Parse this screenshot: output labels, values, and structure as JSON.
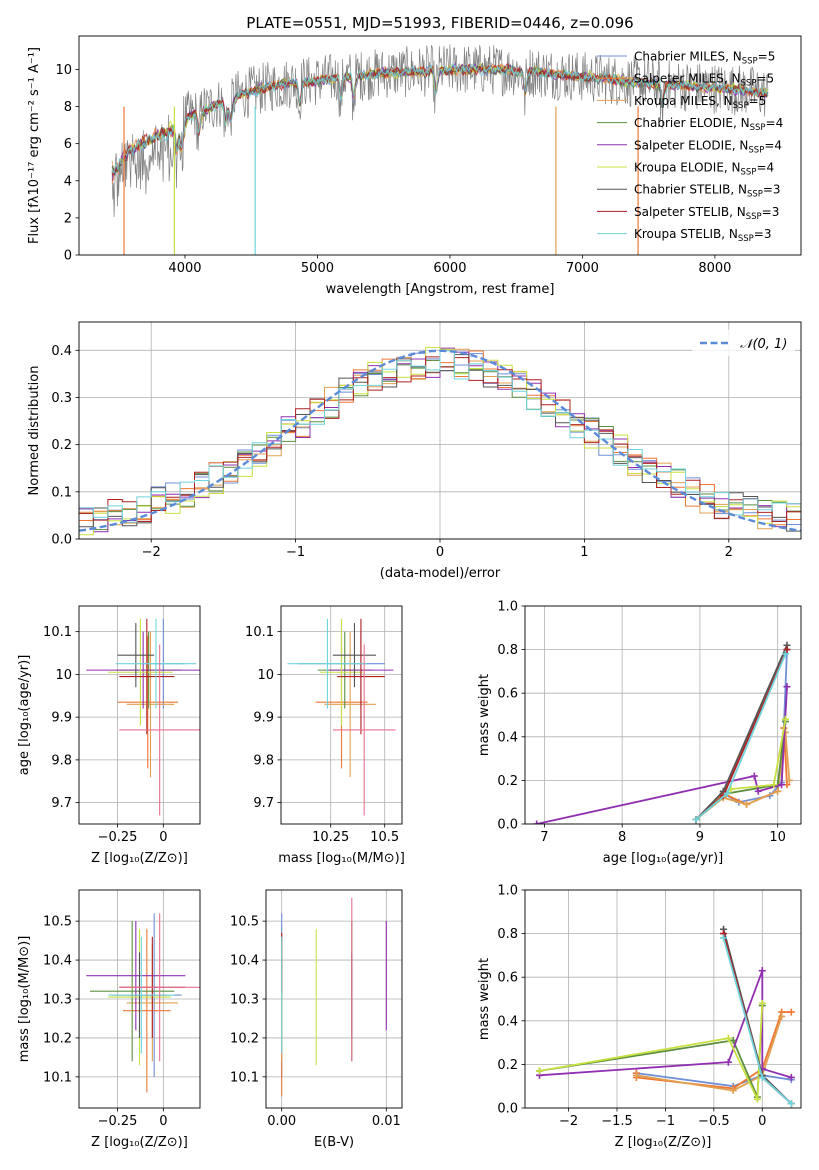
{
  "figure": {
    "title": "PLATE=0551, MJD=51993, FIBERID=0446, z=0.096"
  },
  "colors": {
    "Chabrier MILES": "#6f8fd6",
    "Salpeter MILES": "#ee7733",
    "Kroupa MILES": "#e0a050",
    "Chabrier ELODIE": "#5a8f40",
    "Salpeter ELODIE": "#9030b0",
    "Kroupa ELODIE": "#c8e040",
    "Chabrier STELIB": "#555555",
    "Salpeter STELIB": "#b02020",
    "Kroupa STELIB": "#70d4dc",
    "data": "#808080",
    "extra": "#e87090",
    "gaussian": "#5b8bd8"
  },
  "chart_data": [
    {
      "id": "spectrum",
      "type": "line",
      "title": "PLATE=0551, MJD=51993, FIBERID=0446, z=0.096",
      "xlabel": "wavelength [Angstrom, rest frame]",
      "ylabel": "Flux [fλ10⁻¹⁷ erg cm⁻² s⁻¹ A⁻¹]",
      "xlim": [
        3200,
        8650
      ],
      "ylim": [
        0,
        11.8
      ],
      "xticks": [
        4000,
        5000,
        6000,
        7000,
        8000
      ],
      "yticks": [
        0,
        2,
        4,
        6,
        8,
        10
      ],
      "legend_position": "right",
      "series": [
        {
          "name": "Chabrier MILES, N_SSP=5",
          "label": "Chabrier MILES, N",
          "sub": "SSP",
          "tail": "=5"
        },
        {
          "name": "Salpeter MILES, N_SSP=5",
          "label": "Salpeter MILES, N",
          "sub": "SSP",
          "tail": "=5"
        },
        {
          "name": "Kroupa MILES, N_SSP=5",
          "label": "Kroupa MILES, N",
          "sub": "SSP",
          "tail": "=5"
        },
        {
          "name": "Chabrier ELODIE, N_SSP=4",
          "label": "Chabrier ELODIE, N",
          "sub": "SSP",
          "tail": "=4"
        },
        {
          "name": "Salpeter ELODIE, N_SSP=4",
          "label": "Salpeter ELODIE, N",
          "sub": "SSP",
          "tail": "=4"
        },
        {
          "name": "Kroupa ELODIE, N_SSP=4",
          "label": "Kroupa ELODIE, N",
          "sub": "SSP",
          "tail": "=4"
        },
        {
          "name": "Chabrier STELIB, N_SSP=3",
          "label": "Chabrier STELIB, N",
          "sub": "SSP",
          "tail": "=3"
        },
        {
          "name": "Salpeter STELIB, N_SSP=3",
          "label": "Salpeter STELIB, N",
          "sub": "SSP",
          "tail": "=3"
        },
        {
          "name": "Kroupa STELIB, N_SSP=3",
          "label": "Kroupa STELIB, N",
          "sub": "SSP",
          "tail": "=3"
        }
      ],
      "continuum": {
        "x": [
          3450,
          3550,
          3700,
          3850,
          4000,
          4200,
          4400,
          4600,
          4800,
          5000,
          5200,
          5500,
          5800,
          6000,
          6300,
          6600,
          7000,
          7400,
          7800,
          8200,
          8400
        ],
        "y": [
          4.8,
          5.8,
          6.5,
          7.0,
          7.4,
          8.0,
          8.6,
          9.0,
          9.3,
          9.4,
          9.6,
          9.8,
          9.9,
          10.0,
          10.0,
          9.9,
          9.6,
          9.3,
          9.1,
          8.9,
          8.7
        ]
      }
    },
    {
      "id": "residuals",
      "type": "step",
      "xlabel": "(data-model)/error",
      "ylabel": "Normed distribution",
      "xlim": [
        -2.5,
        2.5
      ],
      "ylim": [
        0,
        0.46
      ],
      "xticks": [
        -2,
        -1,
        0,
        1,
        2
      ],
      "yticks": [
        0.0,
        0.1,
        0.2,
        0.3,
        0.4
      ],
      "legend": "𝒩(0, 1)",
      "bin_width": 0.1,
      "gaussian_sigma": 1.0
    },
    {
      "id": "age_vs_Z",
      "type": "errorbar",
      "xlabel": "Z [log₁₀(Z/Z⊙)]",
      "ylabel": "age  [log₁₀(age/yr)]",
      "xlim": [
        -0.46,
        0.2
      ],
      "ylim": [
        9.65,
        10.16
      ],
      "xticks": [
        -0.25,
        0.0
      ],
      "yticks": [
        9.7,
        9.8,
        9.9,
        10.0,
        10.1
      ],
      "points": [
        {
          "c": "Chabrier MILES",
          "x": [
            -0.12,
            0.12
          ],
          "y": [
            9.92,
            10.13
          ]
        },
        {
          "c": "Salpeter MILES",
          "x": [
            -0.25,
            0.08
          ],
          "y": [
            9.78,
            10.09
          ]
        },
        {
          "c": "Kroupa MILES",
          "x": [
            -0.2,
            0.06
          ],
          "y": [
            9.76,
            10.1
          ]
        },
        {
          "c": "Chabrier ELODIE",
          "x": [
            -0.26,
            0.1
          ],
          "y": [
            9.92,
            10.1
          ]
        },
        {
          "c": "Salpeter ELODIE",
          "x": [
            -0.42,
            0.2
          ],
          "y": [
            9.92,
            10.1
          ]
        },
        {
          "c": "Kroupa ELODIE",
          "x": [
            -0.3,
            0.05
          ],
          "y": [
            9.88,
            10.13
          ]
        },
        {
          "c": "Chabrier STELIB",
          "x": [
            -0.25,
            -0.05
          ],
          "y": [
            9.97,
            10.12
          ]
        },
        {
          "c": "Salpeter STELIB",
          "x": [
            -0.24,
            0.06
          ],
          "y": [
            9.86,
            10.13
          ]
        },
        {
          "c": "Kroupa STELIB",
          "x": [
            -0.26,
            0.18
          ],
          "y": [
            9.92,
            10.13
          ]
        },
        {
          "c": "extra",
          "x": [
            -0.24,
            0.2
          ],
          "y": [
            9.67,
            10.07
          ]
        }
      ]
    },
    {
      "id": "age_vs_mass",
      "type": "errorbar",
      "xlabel": "mass [log₁₀(M/M⊙)]",
      "ylabel": "",
      "xlim": [
        10.02,
        10.58
      ],
      "ylim": [
        9.65,
        10.16
      ],
      "xticks": [
        10.25,
        10.5
      ],
      "yticks": [
        9.7,
        9.8,
        9.9,
        10.0,
        10.1
      ],
      "points": [
        {
          "c": "Chabrier MILES",
          "x": [
            10.1,
            10.5
          ],
          "y": [
            9.92,
            10.13
          ]
        },
        {
          "c": "Salpeter MILES",
          "x": [
            10.18,
            10.42
          ],
          "y": [
            9.78,
            10.09
          ]
        },
        {
          "c": "Kroupa MILES",
          "x": [
            10.22,
            10.46
          ],
          "y": [
            9.76,
            10.1
          ]
        },
        {
          "c": "Chabrier ELODIE",
          "x": [
            10.19,
            10.44
          ],
          "y": [
            9.92,
            10.1
          ]
        },
        {
          "c": "Salpeter ELODIE",
          "x": [
            10.24,
            10.54
          ],
          "y": [
            9.92,
            10.1
          ]
        },
        {
          "c": "Kroupa ELODIE",
          "x": [
            10.2,
            10.4
          ],
          "y": [
            9.88,
            10.13
          ]
        },
        {
          "c": "Chabrier STELIB",
          "x": [
            10.26,
            10.46
          ],
          "y": [
            9.97,
            10.12
          ]
        },
        {
          "c": "Salpeter STELIB",
          "x": [
            10.28,
            10.5
          ],
          "y": [
            9.86,
            10.13
          ]
        },
        {
          "c": "Kroupa STELIB",
          "x": [
            10.05,
            10.42
          ],
          "y": [
            9.92,
            10.13
          ]
        },
        {
          "c": "extra",
          "x": [
            10.26,
            10.55
          ],
          "y": [
            9.67,
            10.07
          ]
        }
      ]
    },
    {
      "id": "weight_vs_age",
      "type": "line",
      "xlabel": "age  [log₁₀(age/yr)]",
      "ylabel": "mass weight",
      "xlim": [
        6.75,
        10.3
      ],
      "ylim": [
        0,
        1.0
      ],
      "xticks": [
        7,
        8,
        9,
        10
      ],
      "yticks": [
        0.0,
        0.2,
        0.4,
        0.6,
        0.8,
        1.0
      ],
      "series": [
        {
          "c": "Chabrier MILES",
          "x": [
            8.95,
            9.3,
            9.5,
            9.9,
            10.05,
            10.12
          ],
          "y": [
            0.02,
            0.14,
            0.1,
            0.13,
            0.19,
            0.8
          ]
        },
        {
          "c": "Salpeter MILES",
          "x": [
            8.95,
            9.3,
            9.6,
            10.0,
            10.08,
            10.12
          ],
          "y": [
            0.02,
            0.14,
            0.09,
            0.15,
            0.44,
            0.18
          ]
        },
        {
          "c": "Kroupa MILES",
          "x": [
            8.95,
            9.3,
            9.6,
            10.0,
            10.1,
            10.15
          ],
          "y": [
            0.02,
            0.12,
            0.09,
            0.15,
            0.42,
            0.2
          ]
        },
        {
          "c": "Chabrier ELODIE",
          "x": [
            8.95,
            9.35,
            10.0,
            10.1
          ],
          "y": [
            0.02,
            0.14,
            0.18,
            0.47
          ]
        },
        {
          "c": "Salpeter ELODIE",
          "x": [
            6.9,
            9.7,
            9.75,
            10.05,
            10.12
          ],
          "y": [
            0.0,
            0.22,
            0.15,
            0.18,
            0.63
          ]
        },
        {
          "c": "Kroupa ELODIE",
          "x": [
            8.95,
            9.4,
            9.95,
            10.1
          ],
          "y": [
            0.02,
            0.16,
            0.18,
            0.48
          ]
        },
        {
          "c": "Chabrier STELIB",
          "x": [
            8.95,
            9.3,
            10.12
          ],
          "y": [
            0.02,
            0.15,
            0.82
          ]
        },
        {
          "c": "Salpeter STELIB",
          "x": [
            8.95,
            9.3,
            10.12
          ],
          "y": [
            0.02,
            0.13,
            0.8
          ]
        },
        {
          "c": "Kroupa STELIB",
          "x": [
            8.95,
            9.35,
            10.1
          ],
          "y": [
            0.02,
            0.14,
            0.78
          ]
        }
      ]
    },
    {
      "id": "mass_vs_Z",
      "type": "errorbar",
      "xlabel": "Z [log₁₀(Z/Z⊙)]",
      "ylabel": "mass [log₁₀(M/M⊙)]",
      "xlim": [
        -0.46,
        0.2
      ],
      "ylim": [
        10.02,
        10.58
      ],
      "xticks": [
        -0.25,
        0.0
      ],
      "yticks": [
        10.1,
        10.2,
        10.3,
        10.4,
        10.5
      ],
      "points": [
        {
          "c": "Chabrier MILES",
          "x": [
            -0.2,
            0.1
          ],
          "y": [
            10.1,
            10.52
          ]
        },
        {
          "c": "Salpeter MILES",
          "x": [
            -0.22,
            0.04
          ],
          "y": [
            10.06,
            10.48
          ]
        },
        {
          "c": "Kroupa MILES",
          "x": [
            -0.2,
            0.08
          ],
          "y": [
            10.14,
            10.44
          ]
        },
        {
          "c": "Chabrier ELODIE",
          "x": [
            -0.4,
            0.06
          ],
          "y": [
            10.14,
            10.5
          ]
        },
        {
          "c": "Salpeter ELODIE",
          "x": [
            -0.42,
            0.12
          ],
          "y": [
            10.22,
            10.5
          ]
        },
        {
          "c": "Kroupa ELODIE",
          "x": [
            -0.3,
            0.04
          ],
          "y": [
            10.13,
            10.48
          ]
        },
        {
          "c": "Chabrier STELIB",
          "x": [
            -0.28,
            0.02
          ],
          "y": [
            10.2,
            10.42
          ]
        },
        {
          "c": "Salpeter STELIB",
          "x": [
            -0.24,
            0.12
          ],
          "y": [
            10.2,
            10.46
          ]
        },
        {
          "c": "Kroupa STELIB",
          "x": [
            -0.3,
            0.06
          ],
          "y": [
            10.16,
            10.46
          ]
        },
        {
          "c": "extra",
          "x": [
            -0.24,
            0.2
          ],
          "y": [
            10.14,
            10.52
          ]
        }
      ]
    },
    {
      "id": "mass_vs_ebv",
      "type": "errorbar",
      "xlabel": "E(B-V)",
      "ylabel": "",
      "xlim": [
        -0.0015,
        0.0115
      ],
      "ylim": [
        10.02,
        10.58
      ],
      "xticks": [
        0.0,
        0.01
      ],
      "xtick_labels": [
        "0.00",
        "0.01"
      ],
      "yticks": [
        10.1,
        10.2,
        10.3,
        10.4,
        10.5
      ],
      "points": [
        {
          "c": "Chabrier MILES",
          "x": [
            0.0,
            0.0
          ],
          "y": [
            10.1,
            10.52
          ]
        },
        {
          "c": "Salpeter MILES",
          "x": [
            0.0,
            0.0
          ],
          "y": [
            10.05,
            10.46
          ]
        },
        {
          "c": "Kroupa MILES",
          "x": [
            0.0,
            0.0
          ],
          "y": [
            10.14,
            10.44
          ]
        },
        {
          "c": "Chabrier ELODIE",
          "x": [
            0.0067,
            0.0067
          ],
          "y": [
            10.14,
            10.5
          ]
        },
        {
          "c": "Salpeter ELODIE",
          "x": [
            0.01,
            0.01
          ],
          "y": [
            10.22,
            10.5
          ]
        },
        {
          "c": "Kroupa ELODIE",
          "x": [
            0.0033,
            0.0033
          ],
          "y": [
            10.13,
            10.48
          ]
        },
        {
          "c": "Chabrier STELIB",
          "x": [
            0.0067,
            0.0067
          ],
          "y": [
            10.2,
            10.42
          ]
        },
        {
          "c": "Salpeter STELIB",
          "x": [
            0.0,
            0.0
          ],
          "y": [
            10.32,
            10.47
          ]
        },
        {
          "c": "Kroupa STELIB",
          "x": [
            0.0,
            0.0
          ],
          "y": [
            10.16,
            10.46
          ]
        },
        {
          "c": "extra",
          "x": [
            0.0067,
            0.0067
          ],
          "y": [
            10.14,
            10.56
          ]
        }
      ]
    },
    {
      "id": "weight_vs_Z",
      "type": "line",
      "xlabel": "Z [log₁₀(Z/Z⊙)]",
      "ylabel": "mass weight",
      "xlim": [
        -2.45,
        0.4
      ],
      "ylim": [
        0,
        1.0
      ],
      "xticks": [
        -2.0,
        -1.5,
        -1.0,
        -0.5,
        0.0
      ],
      "yticks": [
        0.0,
        0.2,
        0.4,
        0.6,
        0.8,
        1.0
      ],
      "series": [
        {
          "c": "Chabrier MILES",
          "x": [
            -1.3,
            -0.3,
            0.0,
            0.3
          ],
          "y": [
            0.16,
            0.1,
            0.15,
            0.13
          ]
        },
        {
          "c": "Salpeter MILES",
          "x": [
            -1.3,
            -1.3,
            -0.3,
            0.0,
            0.2,
            0.3
          ],
          "y": [
            0.16,
            0.14,
            0.09,
            0.18,
            0.44,
            0.44
          ]
        },
        {
          "c": "Kroupa MILES",
          "x": [
            -1.3,
            -0.3,
            0.0,
            0.2
          ],
          "y": [
            0.15,
            0.08,
            0.15,
            0.42
          ]
        },
        {
          "c": "Chabrier ELODIE",
          "x": [
            -2.3,
            -0.3,
            -0.05,
            0.0
          ],
          "y": [
            0.17,
            0.31,
            0.05,
            0.47
          ]
        },
        {
          "c": "Salpeter ELODIE",
          "x": [
            -2.3,
            -0.35,
            0.0,
            0.0,
            0.3
          ],
          "y": [
            0.15,
            0.21,
            0.63,
            0.18,
            0.14
          ]
        },
        {
          "c": "Kroupa ELODIE",
          "x": [
            -2.3,
            -0.35,
            -0.05,
            0.0
          ],
          "y": [
            0.17,
            0.32,
            0.04,
            0.48
          ]
        },
        {
          "c": "Chabrier STELIB",
          "x": [
            -0.4,
            0.0,
            0.3
          ],
          "y": [
            0.82,
            0.15,
            0.02
          ]
        },
        {
          "c": "Salpeter STELIB",
          "x": [
            -0.4,
            0.0,
            0.3
          ],
          "y": [
            0.8,
            0.14,
            0.02
          ]
        },
        {
          "c": "Kroupa STELIB",
          "x": [
            -0.4,
            0.0,
            0.3
          ],
          "y": [
            0.78,
            0.14,
            0.02
          ]
        }
      ]
    }
  ]
}
